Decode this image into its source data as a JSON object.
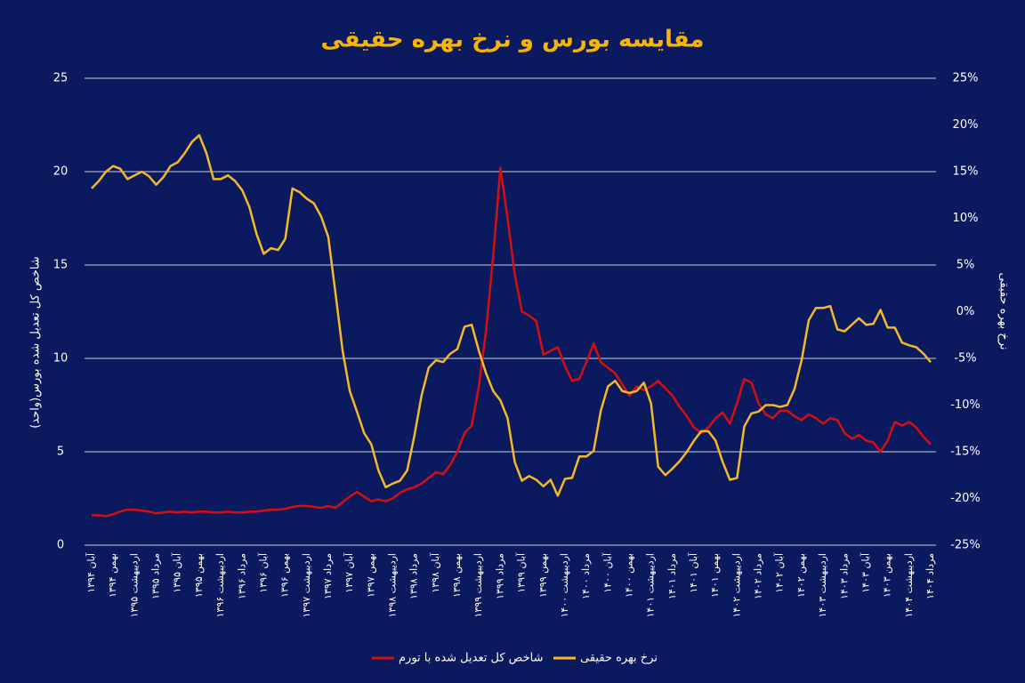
{
  "chart_data": {
    "type": "line",
    "title": "مقایسه بورس و نرخ بهره حقیقی",
    "y_label": "شاخص کل تعدیل شده بورس(واحد)",
    "y2_label": "نرخ بهره حقیقی",
    "categories": [
      "آبان ۱۳۹۴",
      null,
      null,
      "بهمن ۱۳۹۴",
      null,
      null,
      "اردیبهشت ۱۳۹۵",
      null,
      null,
      "مرداد ۱۳۹۵",
      null,
      null,
      "آبان ۱۳۹۵",
      null,
      null,
      "بهمن ۱۳۹۵",
      null,
      null,
      "اردیبهشت ۱۳۹۶",
      null,
      null,
      "مرداد ۱۳۹۶",
      null,
      null,
      "آبان ۱۳۹۶",
      null,
      null,
      "بهمن ۱۳۹۶",
      null,
      null,
      "اردیبهشت ۱۳۹۷",
      null,
      null,
      "مرداد ۱۳۹۷",
      null,
      null,
      "آبان ۱۳۹۷",
      null,
      null,
      "بهمن ۱۳۹۷",
      null,
      null,
      "اردیبهشت ۱۳۹۸",
      null,
      null,
      "مرداد ۱۳۹۸",
      null,
      null,
      "آبان ۱۳۹۸",
      null,
      null,
      "بهمن ۱۳۹۸",
      null,
      null,
      "اردیبهشت ۱۳۹۹",
      null,
      null,
      "مرداد ۱۳۹۹",
      null,
      null,
      "آبان ۱۳۹۹",
      null,
      null,
      "بهمن ۱۳۹۹",
      null,
      null,
      "اردیبهشت ۱۴۰۰",
      null,
      null,
      "مرداد ۱۴۰۰",
      null,
      null,
      "آبان ۱۴۰۰",
      null,
      null,
      "بهمن ۱۴۰۰",
      null,
      null,
      "اردیبهشت ۱۴۰۱",
      null,
      null,
      "مرداد ۱۴۰۱",
      null,
      null,
      "آبان ۱۴۰۱",
      null,
      null,
      "بهمن ۱۴۰۱",
      null,
      null,
      "اردیبهشت ۱۴۰۲",
      null,
      null,
      "مرداد ۱۴۰۲",
      null,
      null,
      "آبان ۱۴۰۲",
      null,
      null,
      "بهمن ۱۴۰۲",
      null,
      null,
      "اردیبهشت ۱۴۰۳",
      null,
      null,
      "مرداد ۱۴۰۳",
      null,
      null,
      "آبان ۱۴۰۳",
      null,
      null,
      "بهمن ۱۴۰۳",
      null,
      null,
      "اردیبهشت ۱۴۰۴",
      null,
      null,
      "مرداد ۱۴۰۴"
    ],
    "series": [
      {
        "name": "شاخص کل تعدیل شده با تورم",
        "color": "#d50f0f",
        "axis": "y",
        "values": [
          1.6,
          1.6,
          1.55,
          1.65,
          1.8,
          1.9,
          1.9,
          1.85,
          1.8,
          1.7,
          1.75,
          1.8,
          1.75,
          1.8,
          1.75,
          1.8,
          1.8,
          1.75,
          1.75,
          1.8,
          1.75,
          1.75,
          1.8,
          1.8,
          1.85,
          1.9,
          1.9,
          1.95,
          2.05,
          2.1,
          2.1,
          2.05,
          2.0,
          2.1,
          2.0,
          2.3,
          2.6,
          2.85,
          2.6,
          2.35,
          2.45,
          2.35,
          2.5,
          2.8,
          3.0,
          3.1,
          3.3,
          3.6,
          3.9,
          3.8,
          4.3,
          5.0,
          6.0,
          6.4,
          8.5,
          11.5,
          15.5,
          20.2,
          17.5,
          14.5,
          12.5,
          12.3,
          12.0,
          10.2,
          10.4,
          10.6,
          9.6,
          8.8,
          8.9,
          9.8,
          10.8,
          9.8,
          9.5,
          9.2,
          8.6,
          8.0,
          8.5,
          8.3,
          8.5,
          8.8,
          8.4,
          8.0,
          7.4,
          6.9,
          6.3,
          6.0,
          6.3,
          6.8,
          7.1,
          6.5,
          7.6,
          8.9,
          8.7,
          7.6,
          7.0,
          6.8,
          7.2,
          7.2,
          6.9,
          6.7,
          7.0,
          6.8,
          6.5,
          6.8,
          6.7,
          6.0,
          5.7,
          5.9,
          5.6,
          5.5,
          5.0,
          5.6,
          6.6,
          6.4,
          6.6,
          6.3,
          5.8,
          5.4
        ]
      },
      {
        "name": "نرخ بهره حقیقی",
        "color": "#f5b829",
        "axis": "y2",
        "values": [
          13.2,
          14,
          15,
          15.6,
          15.3,
          14.2,
          14.6,
          15,
          14.5,
          13.6,
          14.4,
          15.6,
          16,
          17,
          18.2,
          18.9,
          17,
          14.2,
          14.2,
          14.6,
          14,
          13,
          11.2,
          8.3,
          6.2,
          6.8,
          6.6,
          7.8,
          13.2,
          12.8,
          12.1,
          11.6,
          10.2,
          8.0,
          2.0,
          -4.2,
          -8.5,
          -10.7,
          -13,
          -14.2,
          -17,
          -18.8,
          -18.4,
          -18.1,
          -17,
          -13.3,
          -9,
          -6,
          -5.2,
          -5.4,
          -4.5,
          -4,
          -1.6,
          -1.4,
          -4.2,
          -6.6,
          -8.5,
          -9.5,
          -11.4,
          -16.1,
          -18.1,
          -17.6,
          -18,
          -18.7,
          -18,
          -19.7,
          -17.9,
          -17.8,
          -15.5,
          -15.5,
          -14.9,
          -10.6,
          -8,
          -7.4,
          -8.5,
          -8.7,
          -8.5,
          -7.6,
          -9.8,
          -16.6,
          -17.5,
          -16.8,
          -16,
          -15,
          -13.8,
          -12.8,
          -12.8,
          -13.8,
          -16.1,
          -18,
          -17.8,
          -12.3,
          -10.9,
          -10.7,
          -10,
          -10,
          -10.2,
          -10,
          -8.3,
          -5.2,
          -0.9,
          0.4,
          0.4,
          0.6,
          -1.9,
          -2.1,
          -1.4,
          -0.7,
          -1.4,
          -1.3,
          0.2,
          -1.7,
          -1.7,
          -3.3,
          -3.6,
          -3.8,
          -4.5,
          -5.4
        ]
      }
    ],
    "ylim": [
      0,
      25
    ],
    "yticks": [
      0,
      5,
      10,
      15,
      20,
      25
    ],
    "y2lim": [
      -25,
      25
    ],
    "y2ticks": [
      {
        "value": -25,
        "label": "-25%"
      },
      {
        "value": -20,
        "label": "-20%"
      },
      {
        "value": -15,
        "label": "-15%"
      },
      {
        "value": -10,
        "label": "-10%"
      },
      {
        "value": -5,
        "label": "-5%"
      },
      {
        "value": 0,
        "label": "0%"
      },
      {
        "value": 5,
        "label": "5%"
      },
      {
        "value": 10,
        "label": "10%"
      },
      {
        "value": 15,
        "label": "15%"
      },
      {
        "value": 20,
        "label": "20%"
      },
      {
        "value": 25,
        "label": "25%"
      }
    ],
    "grid": true,
    "legend": "bottom"
  }
}
